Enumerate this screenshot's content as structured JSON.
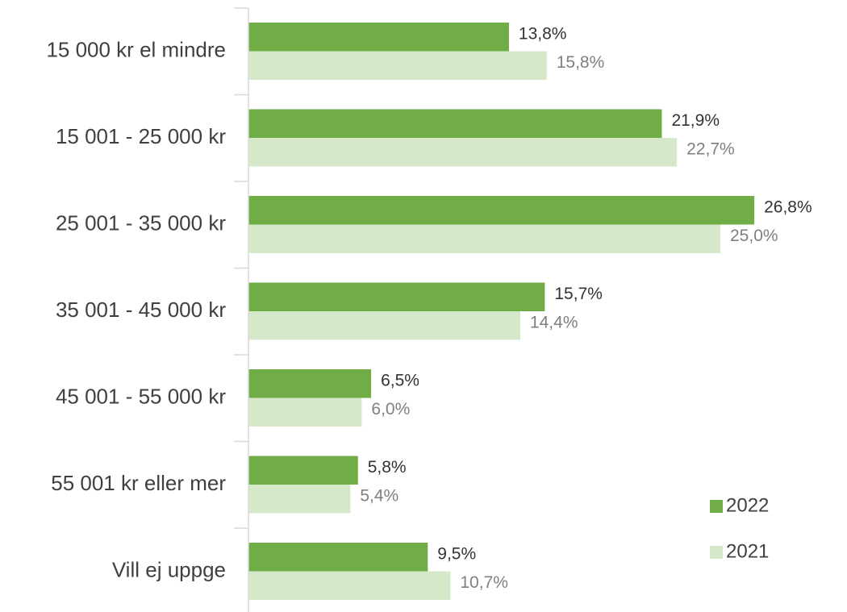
{
  "chart_data": {
    "type": "hbar",
    "categories": [
      "15 000 kr el mindre",
      "15 001 - 25 000 kr",
      "25 001 - 35 000 kr",
      "35 001 - 45 000 kr",
      "45 001 - 55 000 kr",
      "55 001 kr eller mer",
      "Vill ej uppge"
    ],
    "series": [
      {
        "name": "2022",
        "color": "#70ad47",
        "label_color": "#333333",
        "values": [
          13.8,
          21.9,
          26.8,
          15.7,
          6.5,
          5.8,
          9.5
        ],
        "value_labels": [
          "13,8%",
          "21,9%",
          "26,8%",
          "15,7%",
          "6,5%",
          "5,8%",
          "9,5%"
        ]
      },
      {
        "name": "2021",
        "color": "#d5e8c9",
        "label_color": "#808080",
        "values": [
          15.8,
          22.7,
          25.0,
          14.4,
          6.0,
          5.4,
          10.7
        ],
        "value_labels": [
          "15,8%",
          "22,7%",
          "25,0%",
          "14,4%",
          "6,0%",
          "5,4%",
          "10,7%"
        ]
      }
    ],
    "xlim": [
      0,
      30
    ],
    "legend": "bottom-right"
  }
}
